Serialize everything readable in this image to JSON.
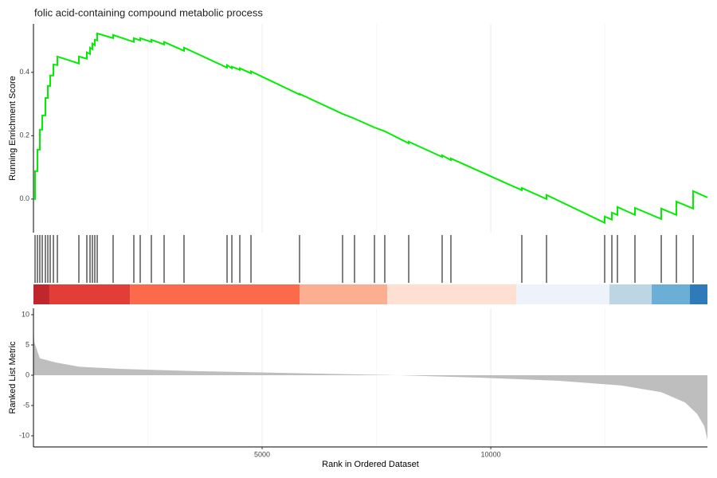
{
  "chart_data": [
    {
      "type": "line",
      "title": "folic acid-containing compound metabolic process",
      "ylabel": "Running Enrichment Score",
      "color": "#00ee00",
      "xlim": [
        0,
        14737
      ],
      "ylim": [
        -0.106,
        0.553
      ],
      "yticks": [
        {
          "value": 0,
          "label": "0.0"
        },
        0.2,
        0.4
      ],
      "x_major_grid": [
        5000,
        10000
      ],
      "x_minor_grid": [
        2500,
        7500,
        12500
      ],
      "x": [
        0,
        35,
        35,
        87,
        87,
        139,
        139,
        192,
        192,
        261,
        261,
        314,
        314,
        366,
        366,
        436,
        436,
        523,
        523,
        993,
        993,
        1167,
        1167,
        1237,
        1237,
        1289,
        1289,
        1341,
        1341,
        1394,
        1394,
        1742,
        1742,
        2195,
        2195,
        2334,
        2334,
        2578,
        2578,
        2857,
        2857,
        3292,
        3292,
        4233,
        4233,
        4338,
        4338,
        4512,
        4512,
        4756,
        4756,
        5818,
        5818,
        6759,
        7020,
        7456,
        7682,
        8205,
        8205,
        8936,
        8936,
        9128,
        9128,
        10678,
        10678,
        11218,
        11218,
        12490,
        12490,
        12647,
        12647,
        12769,
        12769,
        13152,
        13152,
        13727,
        13727,
        14058,
        14058,
        14424,
        14424,
        14737
      ],
      "y": [
        0,
        0,
        0.088,
        0.088,
        0.156,
        0.156,
        0.219,
        0.219,
        0.264,
        0.264,
        0.319,
        0.319,
        0.357,
        0.357,
        0.39,
        0.39,
        0.425,
        0.423,
        0.45,
        0.428,
        0.45,
        0.443,
        0.463,
        0.458,
        0.478,
        0.473,
        0.491,
        0.486,
        0.503,
        0.501,
        0.523,
        0.508,
        0.518,
        0.496,
        0.508,
        0.501,
        0.508,
        0.496,
        0.503,
        0.488,
        0.496,
        0.468,
        0.478,
        0.415,
        0.423,
        0.413,
        0.418,
        0.408,
        0.413,
        0.397,
        0.403,
        0.33,
        0.332,
        0.269,
        0.254,
        0.226,
        0.214,
        0.176,
        0.181,
        0.133,
        0.138,
        0.123,
        0.128,
        0.028,
        0.035,
        0,
        0.013,
        -0.075,
        -0.055,
        -0.065,
        -0.043,
        -0.05,
        -0.025,
        -0.05,
        -0.028,
        -0.063,
        -0.03,
        -0.05,
        -0.008,
        -0.03,
        0.025,
        0.005
      ]
    },
    {
      "type": "rug",
      "xlim": [
        0,
        14737
      ],
      "hits": [
        35,
        87,
        139,
        192,
        261,
        314,
        366,
        436,
        523,
        993,
        1167,
        1237,
        1289,
        1341,
        1394,
        1742,
        2195,
        2334,
        2578,
        2857,
        3292,
        4233,
        4338,
        4512,
        4756,
        5818,
        6759,
        7020,
        7456,
        7682,
        8205,
        8936,
        9128,
        10678,
        11218,
        12490,
        12647,
        12769,
        13152,
        13727,
        14058,
        14424
      ],
      "band_edges": [
        0,
        348,
        2113,
        5818,
        7735,
        10556,
        12595,
        13518,
        14354,
        14737
      ],
      "band_colors": [
        "#c0272d",
        "#e23d36",
        "#fb6a4a",
        "#fcae91",
        "#fee0d2",
        "#eef3fb",
        "#bcd6e6",
        "#6baed6",
        "#2f7ab9"
      ]
    },
    {
      "type": "area",
      "ylabel": "Ranked List Metric",
      "xlabel": "Rank in Ordered Dataset",
      "color": "#bebebe",
      "xlim": [
        0,
        14737
      ],
      "ylim": [
        -11.84,
        11.05
      ],
      "yticks": [
        10,
        5,
        0,
        -5,
        -10
      ],
      "xticks": [
        5000,
        10000
      ],
      "x_major_grid": [
        5000,
        10000
      ],
      "x_minor_grid": [
        2500,
        7500,
        12500
      ],
      "x": [
        0,
        17,
        139,
        488,
        1010,
        1881,
        3623,
        6236,
        7978,
        9720,
        11462,
        12856,
        13727,
        14250,
        14511,
        14668,
        14737
      ],
      "values": [
        8,
        5.5,
        2.8,
        2.1,
        1.4,
        1.05,
        0.66,
        0.26,
        0,
        -0.4,
        -0.9,
        -1.7,
        -2.8,
        -4.5,
        -6.4,
        -8.4,
        -10.7
      ]
    }
  ]
}
